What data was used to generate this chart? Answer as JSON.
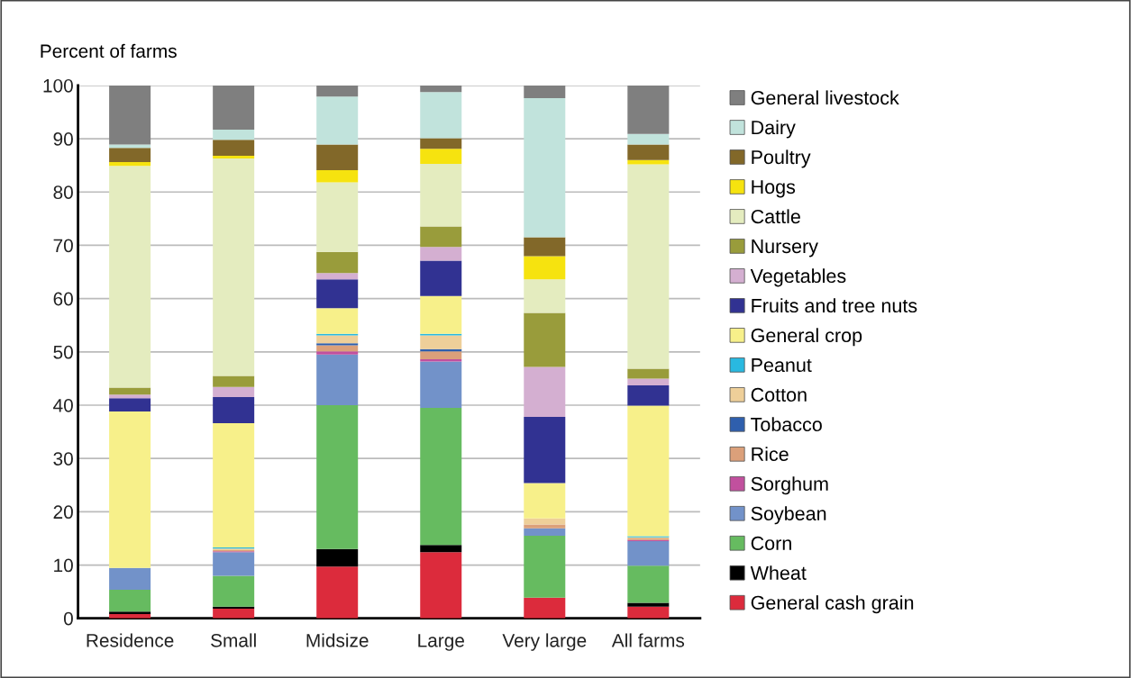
{
  "chart_data": {
    "type": "bar",
    "stacked": true,
    "ylabel": "Percent of farms",
    "categories": [
      "Residence",
      "Small",
      "Midsize",
      "Large",
      "Very large",
      "All farms"
    ],
    "ylim": [
      0,
      100
    ],
    "yticks": [
      0,
      10,
      20,
      30,
      40,
      50,
      60,
      70,
      80,
      90,
      100
    ],
    "grid": "y",
    "legend": "right",
    "series": [
      {
        "name": "General cash grain",
        "color": "#dc2b3c",
        "values": [
          0.8,
          1.8,
          9.7,
          12.4,
          3.9,
          2.2
        ]
      },
      {
        "name": "Wheat",
        "color": "#000000",
        "values": [
          0.45,
          0.4,
          3.3,
          1.35,
          0,
          0.7
        ]
      },
      {
        "name": "Corn",
        "color": "#66bb60",
        "values": [
          4.1,
          5.8,
          27.0,
          25.75,
          11.6,
          7.0
        ]
      },
      {
        "name": "Soybean",
        "color": "#7292c9",
        "values": [
          4.1,
          4.4,
          9.5,
          8.7,
          1.4,
          4.6
        ]
      },
      {
        "name": "Sorghum",
        "color": "#c1509e",
        "values": [
          0,
          0.2,
          0.6,
          0.4,
          0,
          0.2
        ]
      },
      {
        "name": "Rice",
        "color": "#dba07a",
        "values": [
          0,
          0.2,
          1.15,
          1.5,
          0.7,
          0.3
        ]
      },
      {
        "name": "Tobacco",
        "color": "#2f5fad",
        "values": [
          0,
          0,
          0.35,
          0.4,
          0,
          0
        ]
      },
      {
        "name": "Cotton",
        "color": "#eecf99",
        "values": [
          0,
          0.3,
          1.5,
          2.6,
          1.15,
          0.2
        ]
      },
      {
        "name": "Peanut",
        "color": "#29b9e0",
        "values": [
          0,
          0.2,
          0.3,
          0.3,
          0,
          0.2
        ]
      },
      {
        "name": "General crop",
        "color": "#f7f08a",
        "values": [
          29.35,
          23.3,
          4.8,
          7.1,
          6.65,
          24.5
        ]
      },
      {
        "name": "Fruits and tree nuts",
        "color": "#313292",
        "values": [
          2.5,
          4.9,
          5.4,
          6.6,
          12.4,
          3.8
        ]
      },
      {
        "name": "Vegetables",
        "color": "#d4afd1",
        "values": [
          0.7,
          1.9,
          1.2,
          2.6,
          9.4,
          1.3
        ]
      },
      {
        "name": "Nursery",
        "color": "#999c3b",
        "values": [
          1.3,
          2.1,
          3.95,
          3.85,
          10.1,
          1.85
        ]
      },
      {
        "name": "Cattle",
        "color": "#e4ecbf",
        "values": [
          41.6,
          40.8,
          13.05,
          11.75,
          6.3,
          38.35
        ]
      },
      {
        "name": "Hogs",
        "color": "#f6e30f",
        "values": [
          0.7,
          0.5,
          2.3,
          2.8,
          4.36,
          0.8
        ]
      },
      {
        "name": "Poultry",
        "color": "#826829",
        "values": [
          2.7,
          3.0,
          4.8,
          2.0,
          3.55,
          2.9
        ]
      },
      {
        "name": "Dairy",
        "color": "#c1e3dc",
        "values": [
          0.6,
          1.9,
          9.0,
          8.65,
          26.1,
          2.0
        ]
      },
      {
        "name": "General livestock",
        "color": "#7f7f7f",
        "values": [
          11.1,
          8.3,
          2.1,
          1.25,
          2.4,
          9.1
        ]
      }
    ]
  }
}
